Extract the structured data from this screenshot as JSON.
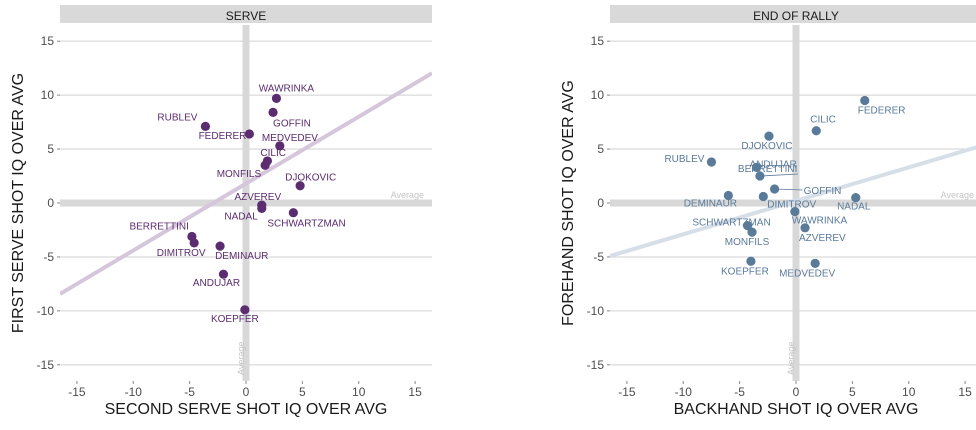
{
  "chart_data": [
    {
      "type": "scatter",
      "title": "SERVE",
      "xlabel": "SECOND SERVE SHOT IQ OVER AVG",
      "ylabel": "FIRST SERVE SHOT IQ OVER AVG",
      "xlim": [
        -16.5,
        16.5
      ],
      "ylim": [
        -16.5,
        16.5
      ],
      "xticks": [
        -15,
        -10,
        -5,
        0,
        5,
        10,
        15
      ],
      "yticks": [
        -15,
        -10,
        -5,
        0,
        5,
        10,
        15
      ],
      "avg_label_x": "Average",
      "avg_label_y": "Average",
      "grid": true,
      "point_color": "#5b2c6f",
      "trend_color": "#d5c6dc",
      "trend": {
        "slope": 0.62,
        "intercept": 1.8
      },
      "points": [
        {
          "label": "WAWRINKA",
          "x": 2.7,
          "y": 9.7
        },
        {
          "label": "GOFFIN",
          "x": 2.4,
          "y": 8.4
        },
        {
          "label": "RUBLEV",
          "x": -3.6,
          "y": 7.1
        },
        {
          "label": "FEDERER",
          "x": 0.3,
          "y": 6.4
        },
        {
          "label": "MEDVEDEV",
          "x": 3.0,
          "y": 5.3
        },
        {
          "label": "CILIC",
          "x": 1.9,
          "y": 3.9
        },
        {
          "label": "MONFILS",
          "x": 1.7,
          "y": 3.5
        },
        {
          "label": "DJOKOVIC",
          "x": 4.8,
          "y": 1.6
        },
        {
          "label": "AZVEREV",
          "x": 1.4,
          "y": -0.2
        },
        {
          "label": "NADAL",
          "x": 1.4,
          "y": -0.5
        },
        {
          "label": "SCHWARTZMAN",
          "x": 4.2,
          "y": -0.9
        },
        {
          "label": "BERRETTINI",
          "x": -4.8,
          "y": -3.1
        },
        {
          "label": "DIMITROV",
          "x": -4.6,
          "y": -3.7
        },
        {
          "label": "DEMINAUR",
          "x": -2.3,
          "y": -4.0
        },
        {
          "label": "ANDUJAR",
          "x": -2.0,
          "y": -6.6
        },
        {
          "label": "KOEPFER",
          "x": -0.1,
          "y": -9.9
        }
      ]
    },
    {
      "type": "scatter",
      "title": "END OF RALLY",
      "xlabel": "BACKHAND SHOT IQ OVER AVG",
      "ylabel": "FOREHAND SHOT IQ OVER AVG",
      "xlim": [
        -16.5,
        16.5
      ],
      "ylim": [
        -16.5,
        16.5
      ],
      "xticks": [
        -15,
        -10,
        -5,
        0,
        5,
        10,
        15
      ],
      "yticks": [
        -15,
        -10,
        -5,
        0,
        5,
        10,
        15
      ],
      "avg_label_x": "Average",
      "avg_label_y": "Average",
      "grid": true,
      "point_color": "#5a7a9a",
      "trend_color": "#d6dfe8",
      "trend": {
        "slope": 0.31,
        "intercept": 0.2
      },
      "points": [
        {
          "label": "FEDERER",
          "x": 6.1,
          "y": 9.5
        },
        {
          "label": "CILIC",
          "x": 1.8,
          "y": 6.7
        },
        {
          "label": "DJOKOVIC",
          "x": -2.4,
          "y": 6.2
        },
        {
          "label": "RUBLEV",
          "x": -7.5,
          "y": 3.8
        },
        {
          "label": "ANDUJAR",
          "x": -3.5,
          "y": 3.3
        },
        {
          "label": "BERRETTINI",
          "x": -3.2,
          "y": 2.5
        },
        {
          "label": "GOFFIN",
          "x": -1.9,
          "y": 1.3
        },
        {
          "label": "NADAL",
          "x": 5.3,
          "y": 0.5
        },
        {
          "label": "DEMINAUR",
          "x": -6.0,
          "y": 0.7
        },
        {
          "label": "DIMITROV",
          "x": -2.9,
          "y": 0.6
        },
        {
          "label": "WAWRINKA",
          "x": -0.1,
          "y": -0.8
        },
        {
          "label": "SCHWARTZMAN",
          "x": -4.3,
          "y": -2.1
        },
        {
          "label": "AZVEREV",
          "x": 0.8,
          "y": -2.3
        },
        {
          "label": "MONFILS",
          "x": -3.9,
          "y": -2.7
        },
        {
          "label": "KOEPFER",
          "x": -4.0,
          "y": -5.4
        },
        {
          "label": "MEDVEDEV",
          "x": 1.7,
          "y": -5.6
        }
      ]
    }
  ]
}
